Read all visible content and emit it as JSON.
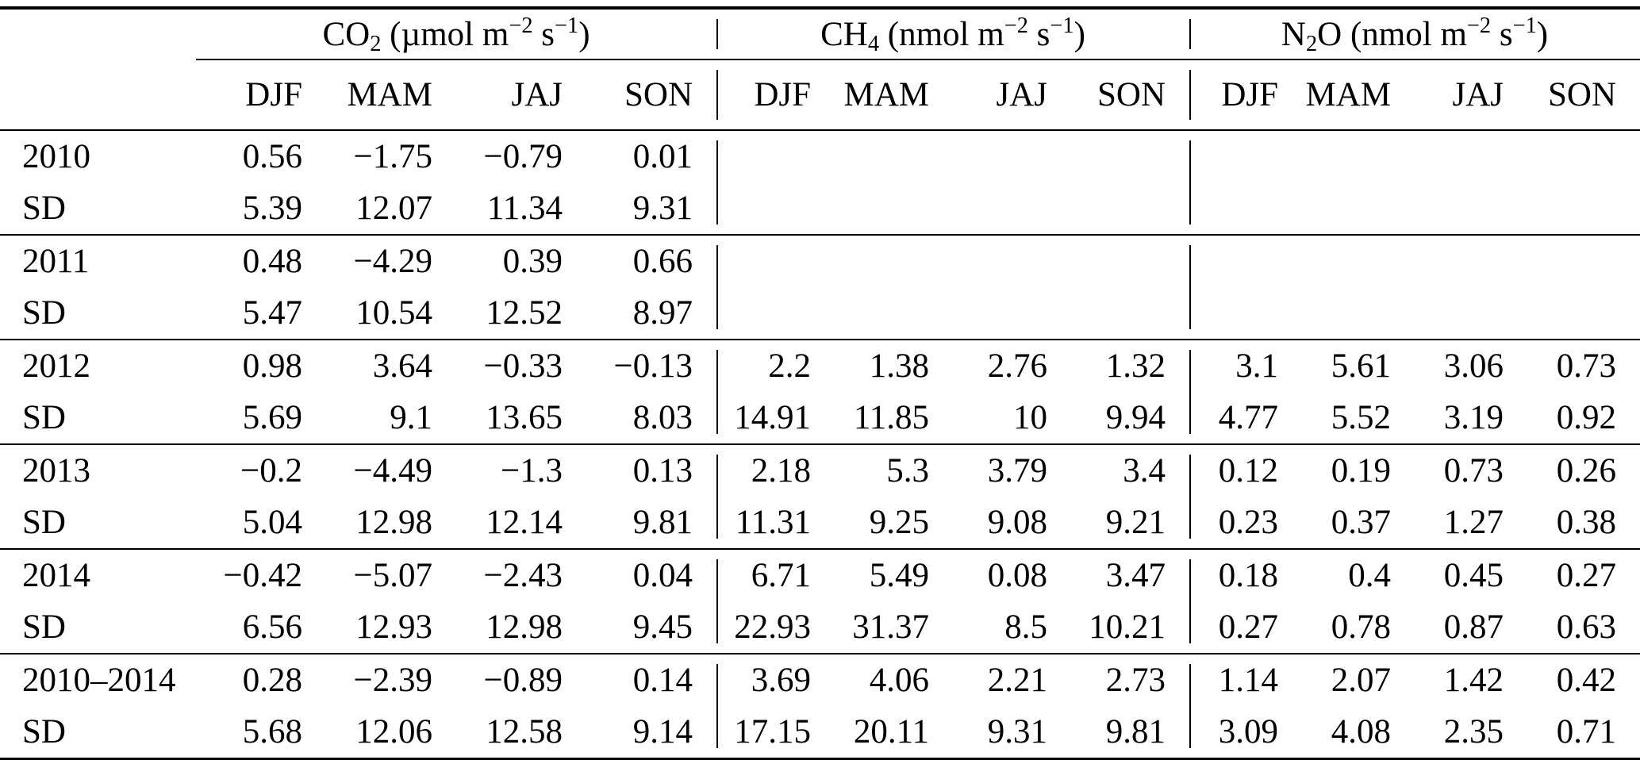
{
  "table": {
    "corner_label": "",
    "groups": [
      {
        "formula_base": "CO",
        "formula_sub": "2",
        "formula_base2": "",
        "unit_open": " (µmol m",
        "unit_exp1": "−2",
        "unit_mid": " s",
        "unit_exp2": "−1",
        "unit_close": ")",
        "seasons": [
          "DJF",
          "MAM",
          "JAJ",
          "SON"
        ]
      },
      {
        "formula_base": "CH",
        "formula_sub": "4",
        "formula_base2": "",
        "unit_open": " (nmol m",
        "unit_exp1": "−2",
        "unit_mid": " s",
        "unit_exp2": "−1",
        "unit_close": ")",
        "seasons": [
          "DJF",
          "MAM",
          "JAJ",
          "SON"
        ]
      },
      {
        "formula_base": "N",
        "formula_sub": "2",
        "formula_base2": "O",
        "unit_open": " (nmol m",
        "unit_exp1": "−2",
        "unit_mid": " s",
        "unit_exp2": "−1",
        "unit_close": ")",
        "seasons": [
          "DJF",
          "MAM",
          "JAJ",
          "SON"
        ]
      }
    ],
    "row_groups": [
      {
        "rows": [
          {
            "label": "2010",
            "values": [
              "0.56",
              "−1.75",
              "−0.79",
              "0.01",
              "",
              "",
              "",
              "",
              "",
              "",
              "",
              ""
            ]
          },
          {
            "label": "SD",
            "values": [
              "5.39",
              "12.07",
              "11.34",
              "9.31",
              "",
              "",
              "",
              "",
              "",
              "",
              "",
              ""
            ]
          }
        ]
      },
      {
        "rows": [
          {
            "label": "2011",
            "values": [
              "0.48",
              "−4.29",
              "0.39",
              "0.66",
              "",
              "",
              "",
              "",
              "",
              "",
              "",
              ""
            ]
          },
          {
            "label": "SD",
            "values": [
              "5.47",
              "10.54",
              "12.52",
              "8.97",
              "",
              "",
              "",
              "",
              "",
              "",
              "",
              ""
            ]
          }
        ]
      },
      {
        "rows": [
          {
            "label": "2012",
            "values": [
              "0.98",
              "3.64",
              "−0.33",
              "−0.13",
              "2.2",
              "1.38",
              "2.76",
              "1.32",
              "3.1",
              "5.61",
              "3.06",
              "0.73"
            ]
          },
          {
            "label": "SD",
            "values": [
              "5.69",
              "9.1",
              "13.65",
              "8.03",
              "14.91",
              "11.85",
              "10",
              "9.94",
              "4.77",
              "5.52",
              "3.19",
              "0.92"
            ]
          }
        ]
      },
      {
        "rows": [
          {
            "label": "2013",
            "values": [
              "−0.2",
              "−4.49",
              "−1.3",
              "0.13",
              "2.18",
              "5.3",
              "3.79",
              "3.4",
              "0.12",
              "0.19",
              "0.73",
              "0.26"
            ]
          },
          {
            "label": "SD",
            "values": [
              "5.04",
              "12.98",
              "12.14",
              "9.81",
              "11.31",
              "9.25",
              "9.08",
              "9.21",
              "0.23",
              "0.37",
              "1.27",
              "0.38"
            ]
          }
        ]
      },
      {
        "rows": [
          {
            "label": "2014",
            "values": [
              "−0.42",
              "−5.07",
              "−2.43",
              "0.04",
              "6.71",
              "5.49",
              "0.08",
              "3.47",
              "0.18",
              "0.4",
              "0.45",
              "0.27"
            ]
          },
          {
            "label": "SD",
            "values": [
              "6.56",
              "12.93",
              "12.98",
              "9.45",
              "22.93",
              "31.37",
              "8.5",
              "10.21",
              "0.27",
              "0.78",
              "0.87",
              "0.63"
            ]
          }
        ]
      },
      {
        "rows": [
          {
            "label": "2010–2014",
            "values": [
              "0.28",
              "−2.39",
              "−0.89",
              "0.14",
              "3.69",
              "4.06",
              "2.21",
              "2.73",
              "1.14",
              "2.07",
              "1.42",
              "0.42"
            ]
          },
          {
            "label": "SD",
            "values": [
              "5.68",
              "12.06",
              "12.58",
              "9.14",
              "17.15",
              "20.11",
              "9.31",
              "9.81",
              "3.09",
              "4.08",
              "2.35",
              "0.71"
            ]
          }
        ]
      }
    ]
  },
  "colors": {
    "text": "#000000",
    "rule": "#000000",
    "background": "#ffffff"
  }
}
